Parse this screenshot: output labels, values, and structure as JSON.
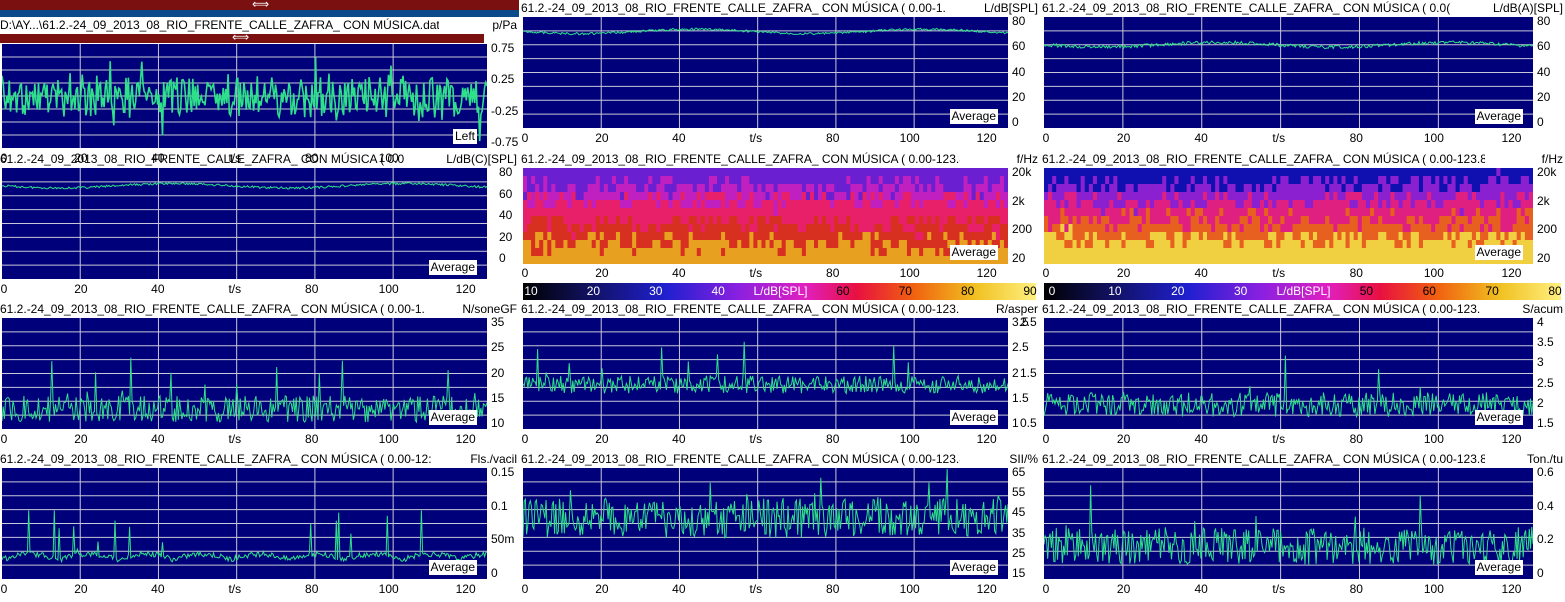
{
  "panels": [
    {
      "id": "p1",
      "title": "D:\\AY...\\61.2.-24_09_2013_08_RIO_FRENTE_CALLE_ZAFRA_ CON MÚSICA.dat",
      "unit": "p/Pa",
      "yticks": [
        "0.75",
        "0.25",
        "-0.25",
        "-0.75"
      ],
      "xticks": [
        "0",
        "20",
        "40",
        "t/s",
        "80",
        "100",
        "120"
      ],
      "label": "Left",
      "kind": "wave",
      "color": "#2fe08a"
    },
    {
      "id": "p2",
      "title": "61.2.-24_09_2013_08_RIO_FRENTE_CALLE_ZAFRA_ CON MÚSICA ( 0.00-1.",
      "unit": "L/dB[SPL]",
      "yticks": [
        "80",
        "60",
        "40",
        "20",
        "0"
      ],
      "xticks": [
        "0",
        "20",
        "40",
        "t/s",
        "80",
        "100",
        "120"
      ],
      "label": "Average",
      "kind": "line",
      "color": "#2fe08a",
      "level": 0.13,
      "noise": 0.02
    },
    {
      "id": "p3",
      "title": "61.2.-24_09_2013_08_RIO_FRENTE_CALLE_ZAFRA_ CON MÚSICA ( 0.0(",
      "unit": "L/dB(A)[SPL]",
      "yticks": [
        "80",
        "60",
        "40",
        "20",
        "0"
      ],
      "xticks": [
        "0",
        "20",
        "40",
        "t/s",
        "80",
        "100",
        "120"
      ],
      "label": "Average",
      "kind": "line",
      "color": "#2fe08a",
      "level": 0.25,
      "noise": 0.03
    },
    {
      "id": "p4",
      "title": "61.2.-24_09_2013_08_RIO_FRENTE_CALLE_ZAFRA_ CON MÚSICA ( 0.0",
      "unit": "L/dB(C)[SPL]",
      "yticks": [],
      "xticks": [
        "0",
        "20",
        "40",
        "t/s",
        "80",
        "100",
        "120"
      ],
      "label": "Average",
      "kind": "line",
      "color": "#2fe08a",
      "level": 0.16,
      "noise": 0.02
    },
    {
      "id": "p5",
      "title": "61.2.-24_09_2013_08_RIO_FRENTE_CALLE_ZAFRA_ CON MÚSICA ( 0.00-123.83",
      "unit": "f/Hz",
      "yticks": [
        "20k",
        "2k",
        "200",
        "20"
      ],
      "leftticks": [
        "80",
        "60",
        "40",
        "20",
        "0"
      ],
      "xticks": [
        "0",
        "20",
        "40",
        "t/s",
        "80",
        "100",
        "120"
      ],
      "label": "Average",
      "kind": "spec",
      "cbar": [
        "10",
        "20",
        "30",
        "40",
        "L/dB[SPL]",
        "60",
        "70",
        "80",
        "90"
      ]
    },
    {
      "id": "p6",
      "title": "61.2.-24_09_2013_08_RIO_FRENTE_CALLE_ZAFRA_ CON MÚSICA ( 0.00-123.83",
      "unit": "f/Hz",
      "yticks": [
        "20k",
        "2k",
        "200",
        "20"
      ],
      "xticks": [
        "0",
        "20",
        "40",
        "t/s",
        "80",
        "100",
        "120"
      ],
      "label": "Average",
      "kind": "spec2",
      "cbar": [
        "0",
        "10",
        "20",
        "30",
        "L/dB[SPL]",
        "50",
        "60",
        "70",
        "80"
      ]
    },
    {
      "id": "p7",
      "title": "61.2.-24_09_2013_08_RIO_FRENTE_CALLE_ZAFRA_ CON MÚSICA ( 0.00-1.",
      "unit": "N/soneGF",
      "yticks": [
        "35",
        "25",
        "20",
        "15",
        "10"
      ],
      "xticks": [
        "0",
        "20",
        "40",
        "t/s",
        "80",
        "100",
        "120"
      ],
      "label": "Average",
      "kind": "noisy",
      "color": "#2fe08a",
      "level": 0.82,
      "noise": 0.12
    },
    {
      "id": "p8",
      "title": "61.2.-24_09_2013_08_RIO_FRENTE_CALLE_ZAFRA_ CON MÚSICA ( 0.00-123.",
      "unit": "R/asper",
      "yticks": [
        "3.5",
        "2.5",
        "2",
        "1.5",
        "1"
      ],
      "xticks": [
        "0",
        "20",
        "40",
        "t/s",
        "80",
        "100",
        "120"
      ],
      "label": "Average",
      "kind": "noisy",
      "color": "#2fe08a",
      "level": 0.6,
      "noise": 0.08
    },
    {
      "id": "p9",
      "title": "61.2.-24_09_2013_08_RIO_FRENTE_CALLE_ZAFRA_ CON MÚSICA ( 0.00-123.",
      "unit": "S/acum",
      "yticks": [
        "4",
        "3.5",
        "3",
        "2.5",
        "2",
        "1.5"
      ],
      "leftticks": [
        "2.5",
        "1.5",
        "0.5"
      ],
      "xticks": [
        "0",
        "20",
        "40",
        "t/s",
        "80",
        "100",
        "120"
      ],
      "label": "Average",
      "kind": "noisy",
      "color": "#2fe08a",
      "level": 0.78,
      "noise": 0.11
    },
    {
      "id": "p10",
      "title": "61.2.-24_09_2013_08_RIO_FRENTE_CALLE_ZAFRA_ CON MÚSICA ( 0.00-12:",
      "unit": "Fls./vacil",
      "yticks": [
        "0.15",
        "0.1",
        "50m",
        "0"
      ],
      "xticks": [
        "0",
        "20",
        "40",
        "t/s",
        "80",
        "100",
        "120"
      ],
      "label": "Average",
      "kind": "peaks",
      "color": "#2fe08a",
      "level": 0.85,
      "noise": 0.05
    },
    {
      "id": "p11",
      "title": "61.2.-24_09_2013_08_RIO_FRENTE_CALLE_ZAFRA_ CON MÚSICA ( 0.00-123.83",
      "unit": "SII/%",
      "yticks": [
        "65",
        "55",
        "45",
        "35",
        "25",
        "15"
      ],
      "xticks": [
        "0",
        "20",
        "40",
        "t/s",
        "80",
        "100",
        "120"
      ],
      "label": "Average",
      "kind": "noisy",
      "color": "#2fe08a",
      "level": 0.45,
      "noise": 0.18
    },
    {
      "id": "p12",
      "title": "61.2.-24_09_2013_08_RIO_FRENTE_CALLE_ZAFRA_ CON MÚSICA ( 0.00-123.8",
      "unit": "Ton./tu",
      "yticks": [
        "0.6",
        "0.4",
        "0.2",
        "0"
      ],
      "xticks": [
        "0",
        "20",
        "40",
        "t/s",
        "80",
        "100",
        "120"
      ],
      "label": "Average",
      "kind": "noisy",
      "color": "#2fe08a",
      "level": 0.7,
      "noise": 0.17
    }
  ],
  "colors": {
    "plot_bg": "#00007a",
    "grid": "#c8c8d8",
    "trace": "#2fe08a",
    "window_bar": "#7a1010"
  }
}
